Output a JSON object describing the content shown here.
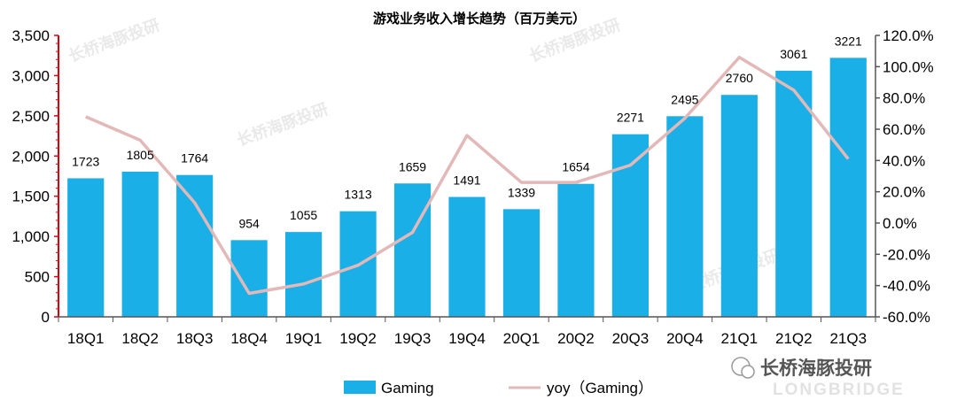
{
  "chart_data": {
    "type": "bar",
    "title": "游戏业务收入增长趋势（百万美元）",
    "categories": [
      "18Q1",
      "18Q2",
      "18Q3",
      "18Q4",
      "19Q1",
      "19Q2",
      "19Q3",
      "19Q4",
      "20Q1",
      "20Q2",
      "20Q3",
      "20Q4",
      "21Q1",
      "21Q2",
      "21Q3"
    ],
    "series": [
      {
        "name": "Gaming",
        "type": "bar",
        "axis": "left",
        "color": "#1aafe6",
        "values": [
          1723,
          1805,
          1764,
          954,
          1055,
          1313,
          1659,
          1491,
          1339,
          1654,
          2271,
          2495,
          2760,
          3061,
          3221
        ]
      },
      {
        "name": "yoy（Gaming）",
        "type": "line",
        "axis": "right",
        "color": "#e3b8b8",
        "values": [
          68,
          53,
          13,
          -45,
          -39,
          -27,
          -6,
          56,
          26,
          26,
          37,
          67,
          106,
          85,
          41
        ]
      }
    ],
    "left_axis": {
      "min": 0,
      "max": 3500,
      "ticks": [
        "0",
        "500",
        "1,000",
        "1,500",
        "2,000",
        "2,500",
        "3,000",
        "3,500"
      ]
    },
    "right_axis": {
      "min": -60,
      "max": 120,
      "ticks": [
        "-60.0%",
        "-40.0%",
        "-20.0%",
        "0.0%",
        "20.0%",
        "40.0%",
        "60.0%",
        "80.0%",
        "100.0%",
        "120.0%"
      ]
    },
    "legend_position": "bottom",
    "grid": false
  },
  "watermark": {
    "brand_cn": "长桥海豚投研",
    "brand_en": "LONGBRIDGE"
  }
}
